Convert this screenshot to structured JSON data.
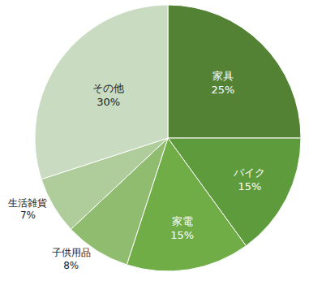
{
  "chart_data": {
    "type": "pie",
    "categories": [
      "家具",
      "バイク",
      "家電",
      "子供用品",
      "生活雑貨",
      "その他"
    ],
    "values": [
      25,
      15,
      15,
      8,
      7,
      30
    ],
    "value_labels": [
      "25%",
      "15%",
      "15%",
      "8%",
      "7%",
      "30%"
    ],
    "colors": [
      "#548235",
      "#5e9b3c",
      "#70ad47",
      "#8fbc6f",
      "#aecd9a",
      "#c9dcc1"
    ],
    "data_labels": true
  }
}
